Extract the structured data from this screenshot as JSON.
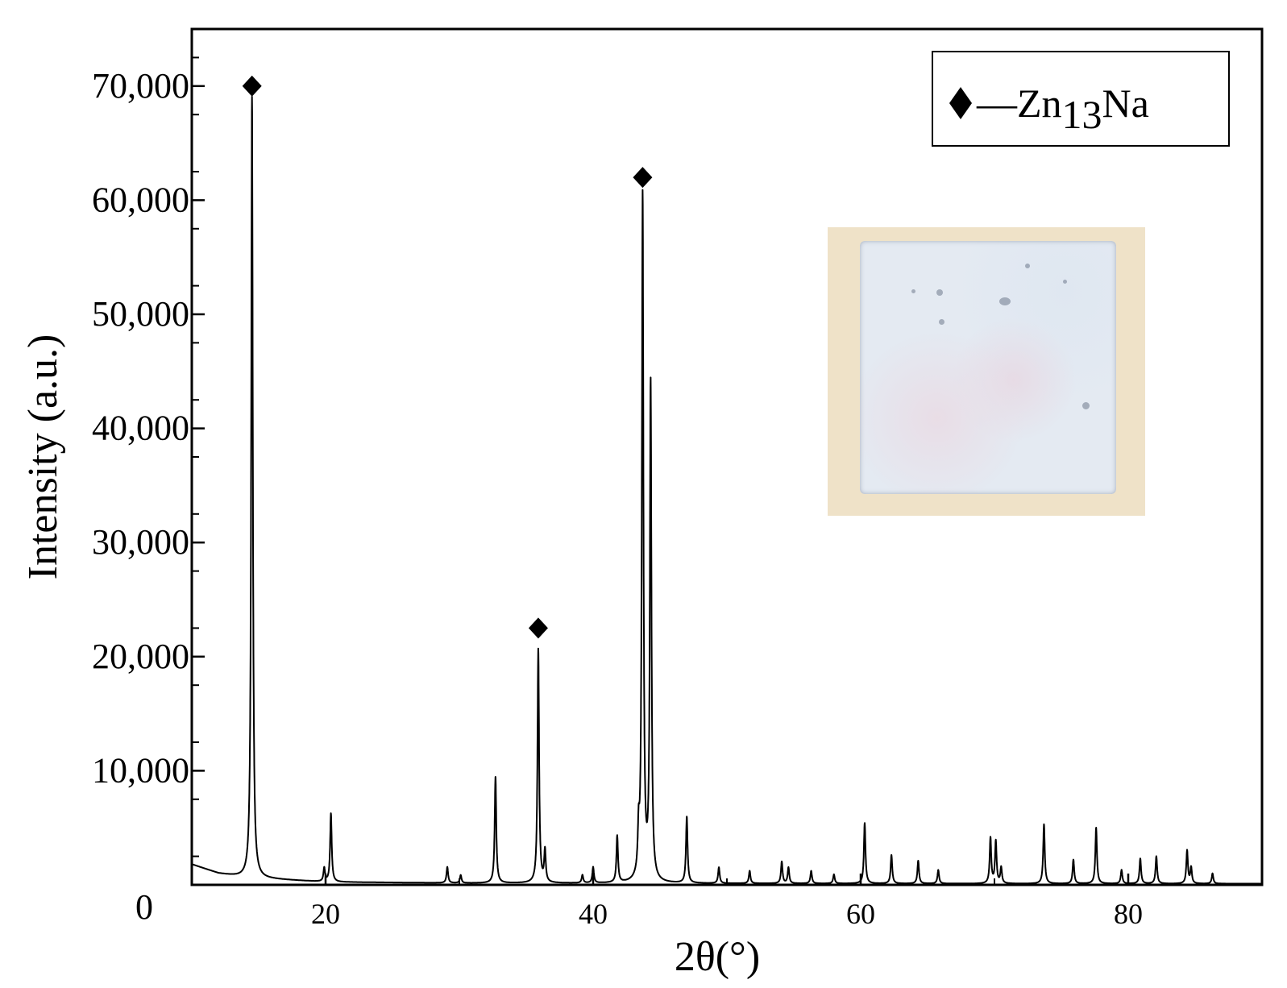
{
  "chart_data": {
    "type": "line",
    "xlabel": "2θ(°)",
    "ylabel": "Intensity (a.u.)",
    "xlim": [
      10,
      90
    ],
    "ylim": [
      0,
      75000
    ],
    "x_ticks": [
      20,
      40,
      60,
      80
    ],
    "y_ticks": [
      0,
      10000,
      20000,
      30000,
      40000,
      50000,
      60000,
      70000
    ],
    "y_tick_labels": [
      "0",
      "10,000",
      "20,000",
      "30,000",
      "40,000",
      "50,000",
      "60,000",
      "70,000"
    ],
    "grid": false,
    "legend": {
      "position": "top-right",
      "marker": "diamond",
      "label_prefix": "—Zn",
      "label_subscript": "13",
      "label_suffix": "Na"
    },
    "series": [
      {
        "color": "#000000",
        "background": [
          [
            10,
            1800
          ],
          [
            12,
            1000
          ],
          [
            14,
            600
          ],
          [
            16,
            500
          ],
          [
            20,
            250
          ],
          [
            30,
            150
          ],
          [
            50,
            120
          ],
          [
            70,
            100
          ],
          [
            90,
            100
          ]
        ],
        "peaks": [
          [
            14.5,
            68500
          ],
          [
            20.4,
            6000
          ],
          [
            19.9,
            1200
          ],
          [
            29.1,
            1400
          ],
          [
            30.1,
            700
          ],
          [
            32.7,
            9300
          ],
          [
            35.9,
            20500
          ],
          [
            36.4,
            2800
          ],
          [
            39.2,
            700
          ],
          [
            40.0,
            1400
          ],
          [
            41.8,
            4100
          ],
          [
            43.4,
            3500
          ],
          [
            43.7,
            60000
          ],
          [
            44.3,
            43500
          ],
          [
            47.0,
            5800
          ],
          [
            49.4,
            1400
          ],
          [
            51.7,
            1100
          ],
          [
            54.1,
            1900
          ],
          [
            54.6,
            1400
          ],
          [
            56.3,
            1100
          ],
          [
            58.0,
            800
          ],
          [
            60.3,
            5300
          ],
          [
            62.3,
            2500
          ],
          [
            64.3,
            2000
          ],
          [
            65.8,
            1200
          ],
          [
            69.7,
            4000
          ],
          [
            70.1,
            3700
          ],
          [
            70.5,
            1400
          ],
          [
            73.7,
            5200
          ],
          [
            75.9,
            2100
          ],
          [
            77.6,
            4900
          ],
          [
            79.5,
            1200
          ],
          [
            80.9,
            2200
          ],
          [
            82.1,
            2400
          ],
          [
            84.4,
            2900
          ],
          [
            84.7,
            1400
          ],
          [
            86.3,
            900
          ]
        ]
      }
    ],
    "markers": [
      {
        "x": 14.5,
        "y": 70000
      },
      {
        "x": 35.9,
        "y": 22500
      },
      {
        "x": 43.7,
        "y": 62000
      }
    ]
  },
  "inset": {
    "background_color": "#efe2c8",
    "plate_color": "#e4eaf2"
  }
}
